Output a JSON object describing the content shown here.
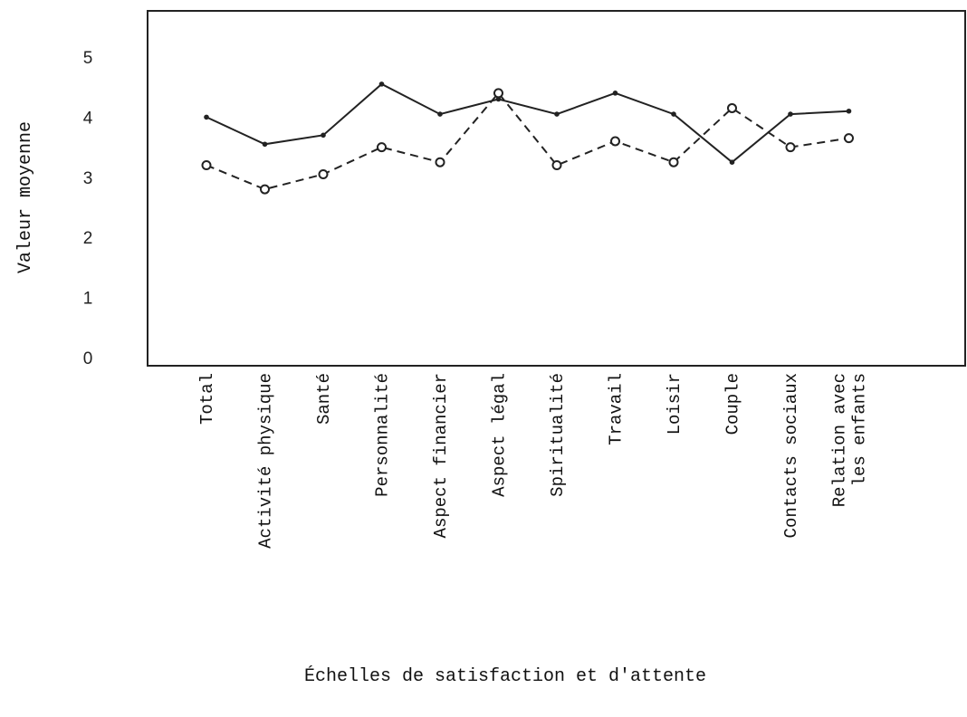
{
  "chart_data": {
    "type": "line",
    "xlabel": "Échelles de satisfaction et d'attente",
    "ylabel": "Valeur moyenne",
    "ylim": [
      0,
      5
    ],
    "yticks": [
      0,
      1,
      2,
      3,
      4,
      5
    ],
    "grid": false,
    "categories": [
      [
        "Total"
      ],
      [
        "Activité physique"
      ],
      [
        "Santé"
      ],
      [
        "Personnalité"
      ],
      [
        "Aspect financier"
      ],
      [
        "Aspect légal"
      ],
      [
        "Spiritualité"
      ],
      [
        "Travail"
      ],
      [
        "Loisir"
      ],
      [
        "Couple"
      ],
      [
        "Contacts sociaux"
      ],
      [
        "Relation avec",
        "les enfants"
      ]
    ],
    "series": [
      {
        "style": "solid",
        "marker": "filled-dot",
        "color": "#222222",
        "values": [
          4.0,
          3.55,
          3.7,
          4.55,
          4.05,
          4.3,
          4.05,
          4.4,
          4.05,
          3.25,
          4.05,
          4.1
        ]
      },
      {
        "style": "dashed",
        "marker": "open-circle",
        "color": "#222222",
        "values": [
          3.2,
          2.8,
          3.05,
          3.5,
          3.25,
          4.4,
          3.2,
          3.6,
          3.25,
          4.15,
          3.5,
          3.65
        ]
      }
    ]
  }
}
